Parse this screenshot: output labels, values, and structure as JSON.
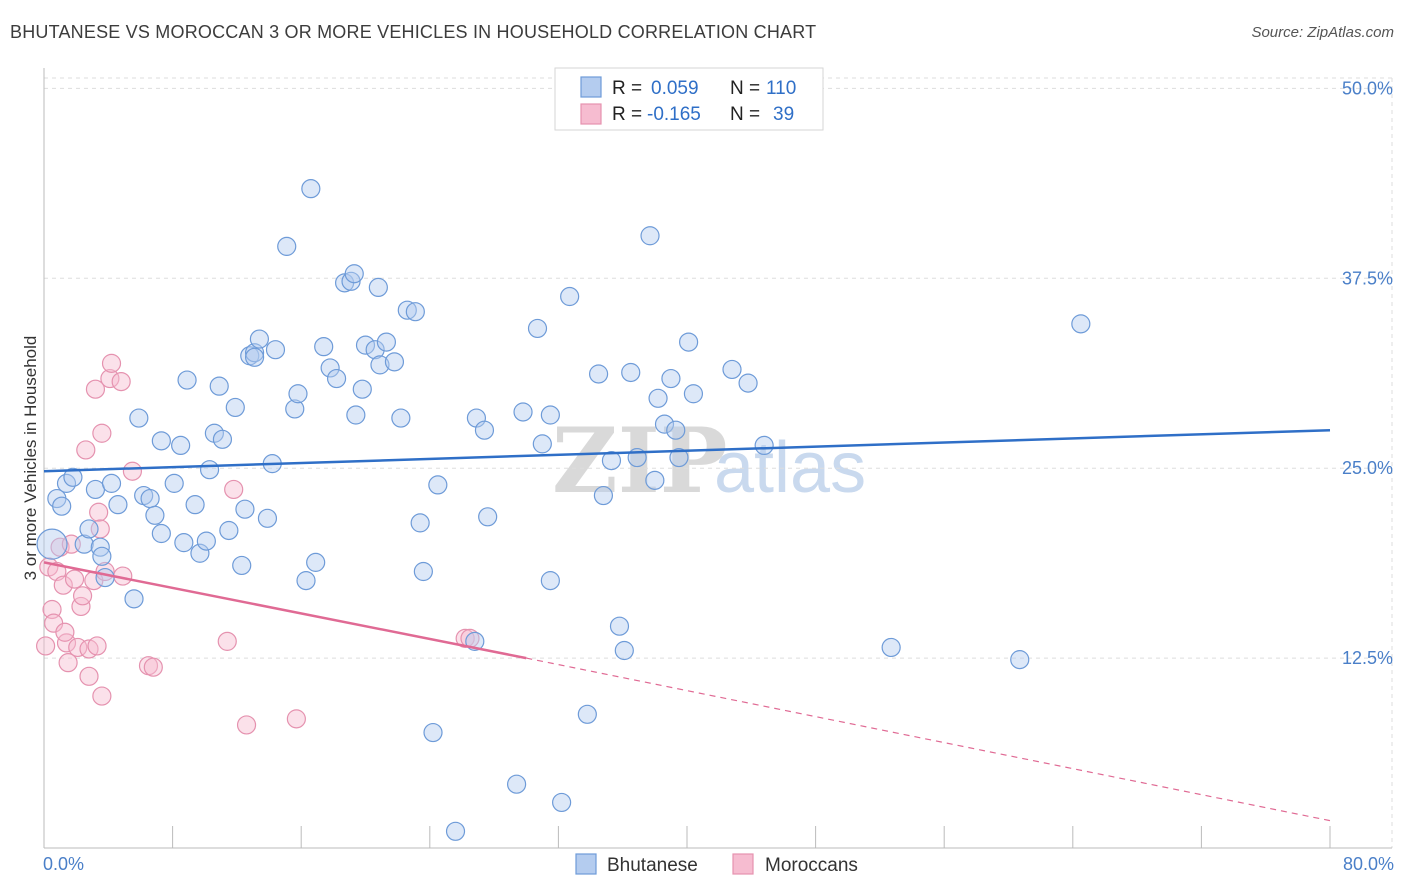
{
  "header": {
    "title": "BHUTANESE VS MOROCCAN 3 OR MORE VEHICLES IN HOUSEHOLD CORRELATION CHART",
    "source": "Source: ZipAtlas.com"
  },
  "watermark": {
    "part1": "ZIP",
    "part2": "atlas"
  },
  "legend": {
    "r_label": "R =",
    "n_label": "N =",
    "rows": [
      {
        "r": "0.059",
        "n": "110"
      },
      {
        "r": "-0.165",
        "n": "39"
      }
    ]
  },
  "bottom_legend": [
    "Bhutanese",
    "Moroccans"
  ],
  "colors": {
    "blue": "#2f6fc7",
    "blue_fill": "#b4ccef",
    "pink": "#e06a94",
    "pink_fill": "#f6bcd0",
    "grid": "#dddddd"
  },
  "chart_data": {
    "type": "scatter",
    "title": "BHUTANESE VS MOROCCAN 3 OR MORE VEHICLES IN HOUSEHOLD CORRELATION CHART",
    "xlabel": "",
    "ylabel": "3 or more Vehicles in Household",
    "xlim": [
      0,
      80
    ],
    "ylim": [
      0,
      52
    ],
    "x_tick_labels": [
      "0.0%",
      "80.0%"
    ],
    "y_ticks": [
      12.5,
      25.0,
      37.5,
      50.0
    ],
    "y_tick_labels": [
      "12.5%",
      "25.0%",
      "37.5%",
      "50.0%"
    ],
    "grid": true,
    "series": [
      {
        "name": "Bhutanese",
        "color": "#2f6fc7",
        "trend": {
          "x0": 0,
          "y0": 24.8,
          "x1": 80,
          "y1": 27.5,
          "style": "solid"
        },
        "points": [
          [
            0.5,
            20
          ],
          [
            0.8,
            23
          ],
          [
            1.1,
            22.5
          ],
          [
            1.4,
            24
          ],
          [
            1.8,
            24.4
          ],
          [
            2.5,
            20
          ],
          [
            2.8,
            21
          ],
          [
            3.2,
            23.6
          ],
          [
            3.5,
            19.8
          ],
          [
            3.6,
            19.2
          ],
          [
            3.8,
            17.8
          ],
          [
            4.2,
            24
          ],
          [
            4.6,
            22.6
          ],
          [
            5.6,
            16.4
          ],
          [
            5.9,
            28.3
          ],
          [
            6.2,
            23.2
          ],
          [
            6.6,
            23
          ],
          [
            6.9,
            21.9
          ],
          [
            7.3,
            20.7
          ],
          [
            7.3,
            26.8
          ],
          [
            8.1,
            24
          ],
          [
            8.5,
            26.5
          ],
          [
            8.7,
            20.1
          ],
          [
            8.9,
            30.8
          ],
          [
            9.4,
            22.6
          ],
          [
            9.7,
            19.4
          ],
          [
            10.1,
            20.2
          ],
          [
            10.3,
            24.9
          ],
          [
            10.6,
            27.3
          ],
          [
            10.9,
            30.4
          ],
          [
            11.1,
            26.9
          ],
          [
            11.5,
            20.9
          ],
          [
            11.9,
            29
          ],
          [
            12.3,
            18.6
          ],
          [
            12.5,
            22.3
          ],
          [
            12.8,
            32.4
          ],
          [
            13.1,
            32.6
          ],
          [
            13.4,
            33.5
          ],
          [
            13.1,
            32.3
          ],
          [
            14.2,
            25.3
          ],
          [
            14.4,
            32.8
          ],
          [
            13.9,
            21.7
          ],
          [
            15.1,
            39.6
          ],
          [
            15.6,
            28.9
          ],
          [
            15.8,
            29.9
          ],
          [
            16.3,
            17.6
          ],
          [
            16.6,
            43.4
          ],
          [
            16.9,
            18.8
          ],
          [
            17.4,
            33
          ],
          [
            17.8,
            31.6
          ],
          [
            18.2,
            30.9
          ],
          [
            18.7,
            37.2
          ],
          [
            19.1,
            37.3
          ],
          [
            19.3,
            37.8
          ],
          [
            19.4,
            28.5
          ],
          [
            19.8,
            30.2
          ],
          [
            20,
            33.1
          ],
          [
            20.6,
            32.8
          ],
          [
            20.9,
            31.8
          ],
          [
            20.8,
            36.9
          ],
          [
            21.3,
            33.3
          ],
          [
            21.8,
            32
          ],
          [
            22.2,
            28.3
          ],
          [
            22.6,
            35.4
          ],
          [
            23.1,
            35.3
          ],
          [
            23.4,
            21.4
          ],
          [
            23.6,
            18.2
          ],
          [
            24.2,
            7.6
          ],
          [
            24.5,
            23.9
          ],
          [
            25.6,
            1.1
          ],
          [
            26.8,
            13.6
          ],
          [
            26.9,
            28.3
          ],
          [
            27.4,
            27.5
          ],
          [
            27.6,
            21.8
          ],
          [
            29.4,
            4.2
          ],
          [
            29.8,
            28.7
          ],
          [
            30.7,
            34.2
          ],
          [
            31,
            26.6
          ],
          [
            31.5,
            28.5
          ],
          [
            31.5,
            17.6
          ],
          [
            32.2,
            3
          ],
          [
            32.7,
            36.3
          ],
          [
            33.8,
            8.8
          ],
          [
            34.5,
            31.2
          ],
          [
            34.8,
            23.2
          ],
          [
            35.3,
            25.5
          ],
          [
            35.8,
            14.6
          ],
          [
            36.1,
            13
          ],
          [
            36.5,
            31.3
          ],
          [
            36.9,
            25.7
          ],
          [
            37.7,
            40.3
          ],
          [
            38,
            24.2
          ],
          [
            38.2,
            29.6
          ],
          [
            38.6,
            27.9
          ],
          [
            39,
            30.9
          ],
          [
            39.3,
            27.5
          ],
          [
            39.5,
            25.7
          ],
          [
            40.4,
            29.9
          ],
          [
            40.1,
            33.3
          ],
          [
            42.8,
            31.5
          ],
          [
            43.8,
            30.6
          ],
          [
            44.8,
            26.5
          ],
          [
            52.7,
            13.2
          ],
          [
            60.7,
            12.4
          ],
          [
            64.5,
            34.5
          ]
        ]
      },
      {
        "name": "Moroccans",
        "color": "#e06a94",
        "trend": {
          "x0": 0,
          "y0": 18.8,
          "x1": 30,
          "y1": 12.5,
          "dash_to_x": 80,
          "dash_to_y": 1.8,
          "style": "solid-then-dashed"
        },
        "points": [
          [
            0.1,
            13.3
          ],
          [
            0.3,
            18.5
          ],
          [
            0.5,
            15.7
          ],
          [
            0.6,
            14.8
          ],
          [
            0.8,
            18.2
          ],
          [
            1.0,
            19.8
          ],
          [
            1.2,
            17.3
          ],
          [
            1.4,
            13.5
          ],
          [
            1.3,
            14.2
          ],
          [
            1.5,
            12.2
          ],
          [
            1.7,
            20
          ],
          [
            1.9,
            17.7
          ],
          [
            2.1,
            13.2
          ],
          [
            2.3,
            15.9
          ],
          [
            2.4,
            16.6
          ],
          [
            2.6,
            26.2
          ],
          [
            2.8,
            13.1
          ],
          [
            2.8,
            11.3
          ],
          [
            3.1,
            17.6
          ],
          [
            3.2,
            30.2
          ],
          [
            3.3,
            13.3
          ],
          [
            3.4,
            22.1
          ],
          [
            3.5,
            21
          ],
          [
            3.6,
            27.3
          ],
          [
            3.6,
            10
          ],
          [
            3.8,
            18.2
          ],
          [
            4.1,
            30.9
          ],
          [
            4.2,
            31.9
          ],
          [
            4.8,
            30.7
          ],
          [
            4.9,
            17.9
          ],
          [
            5.5,
            24.8
          ],
          [
            6.5,
            12
          ],
          [
            6.8,
            11.9
          ],
          [
            11.4,
            13.6
          ],
          [
            11.8,
            23.6
          ],
          [
            12.6,
            8.1
          ],
          [
            15.7,
            8.5
          ],
          [
            26.2,
            13.8
          ],
          [
            26.5,
            13.8
          ]
        ]
      }
    ]
  }
}
